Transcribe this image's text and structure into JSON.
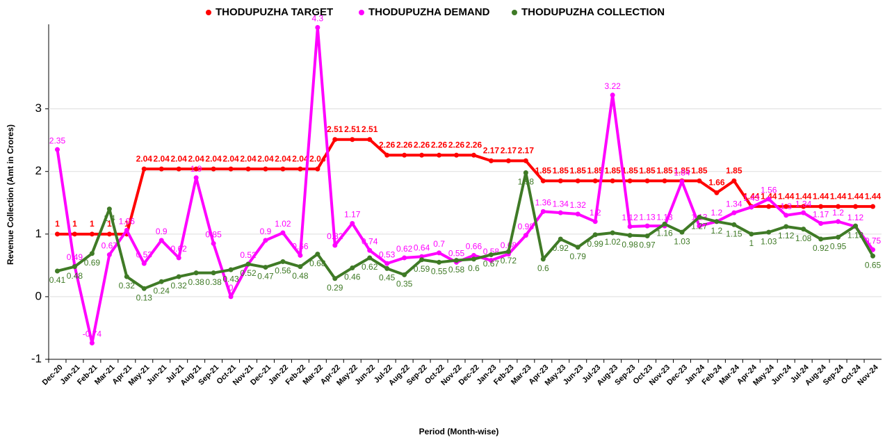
{
  "chart_data": {
    "type": "line",
    "x_label": "Period (Month-wise)",
    "y_label": "Revenue Collection (Amt in Crores)",
    "categories": [
      "Dec-20",
      "Jan-21",
      "Feb-21",
      "Mar-21",
      "Apr-21",
      "May-21",
      "Jun-21",
      "Jul-21",
      "Aug-21",
      "Sep-21",
      "Oct-21",
      "Nov-21",
      "Dec-21",
      "Jan-22",
      "Feb-22",
      "Mar-22",
      "Apr-22",
      "May-22",
      "Jun-22",
      "Jul-22",
      "Aug-22",
      "Sep-22",
      "Oct-22",
      "Nov-22",
      "Dec-22",
      "Jan-23",
      "Feb-23",
      "Mar-23",
      "Apr-23",
      "May-23",
      "Jun-23",
      "Jul-23",
      "Aug-23",
      "Sep-23",
      "Oct-23",
      "Nov-23",
      "Dec-23",
      "Jan-24",
      "Feb-24",
      "Mar-24",
      "Apr-24",
      "May-24",
      "Jun-24",
      "Jul-24",
      "Aug-24",
      "Sep-24",
      "Oct-24",
      "Nov-24"
    ],
    "series": [
      {
        "name": "THODUPUZHA TARGET",
        "color": "#ff0000",
        "values": [
          1,
          1,
          1,
          1,
          1,
          2.04,
          2.04,
          2.04,
          2.04,
          2.04,
          2.04,
          2.04,
          2.04,
          2.04,
          2.04,
          2.04,
          2.51,
          2.51,
          2.51,
          2.26,
          2.26,
          2.26,
          2.26,
          2.26,
          2.26,
          2.17,
          2.17,
          2.17,
          1.85,
          1.85,
          1.85,
          1.85,
          1.85,
          1.85,
          1.85,
          1.85,
          1.85,
          1.85,
          1.66,
          1.85,
          1.44,
          1.44,
          1.44,
          1.44,
          1.44,
          1.44,
          1.44,
          1.44
        ]
      },
      {
        "name": "THODUPUZHA DEMAND",
        "color": "#ff00ff",
        "values": [
          2.35,
          0.49,
          -0.74,
          0.67,
          1.06,
          0.53,
          0.9,
          0.62,
          1.9,
          0.85,
          0,
          0.52,
          0.9,
          1.02,
          0.66,
          4.3,
          0.82,
          1.17,
          0.74,
          0.53,
          0.62,
          0.64,
          0.7,
          0.55,
          0.66,
          0.58,
          0.68,
          0.98,
          1.36,
          1.34,
          1.32,
          1.2,
          3.22,
          1.12,
          1.13,
          1.13,
          1.84,
          1.13,
          1.2,
          1.34,
          1.43,
          1.56,
          1.3,
          1.34,
          1.17,
          1.2,
          1.12,
          0.75
        ]
      },
      {
        "name": "THODUPUZHA COLLECTION",
        "color": "#3f7a26",
        "values": [
          0.41,
          0.48,
          0.69,
          1.4,
          0.32,
          0.13,
          0.24,
          0.32,
          0.38,
          0.38,
          0.43,
          0.52,
          0.47,
          0.56,
          0.48,
          0.68,
          0.29,
          0.46,
          0.62,
          0.45,
          0.35,
          0.59,
          0.55,
          0.58,
          0.6,
          0.67,
          0.72,
          1.98,
          0.6,
          0.92,
          0.79,
          0.99,
          1.02,
          0.98,
          0.97,
          1.16,
          1.03,
          1.27,
          1.2,
          1.15,
          1,
          1.03,
          1.12,
          1.08,
          0.92,
          0.95,
          1.13,
          0.65
        ]
      }
    ],
    "ylim": [
      -1,
      4.35
    ],
    "yticks": [
      -1,
      0,
      1,
      2,
      3
    ],
    "legend": "top"
  }
}
